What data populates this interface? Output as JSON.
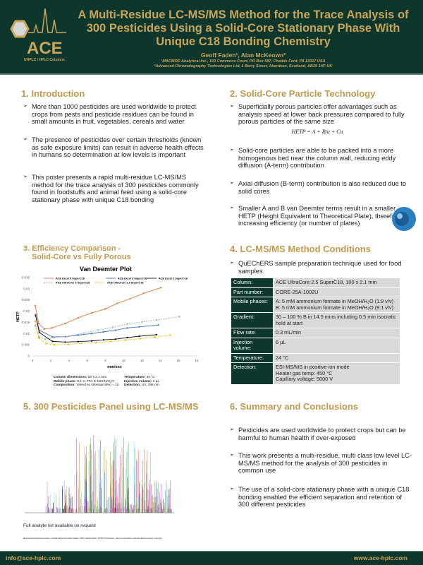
{
  "header": {
    "title": "A Multi-Residue LC-MS/MS Method for the Trace Analysis of 300 Pesticides Using a Solid-Core Stationary Phase With Unique C18 Bonding Chemistry",
    "authors": "Geoff Faden¹, Alan McKeown²",
    "affiliation1": "¹MACMOD Analytical Inc., 103 Commons Court, PO Box 587, Chadds Ford, PA 19317 USA",
    "affiliation2": "²Advanced Chromatography Technologies Ltd, 1 Berry Street, Aberdeen, Scotland, AB25 1HF UK",
    "logo_text": "ACE",
    "logo_sub": "UHPLC / HPLC Columns"
  },
  "colors": {
    "dark_green": "#0d362c",
    "gold": "#c9a55a"
  },
  "intro": {
    "title": "1. Introduction",
    "bullets": [
      "More than 1000 pesticides are used worldwide to protect crops from pests and pesticide residues can be found in small amounts in fruit, vegetables, cereals and water",
      "The presence of pesticides over certain thresholds (known as safe exposure limits) can result in adverse health effects in humans so determination at low levels is important",
      "This poster presents a rapid multi-residue LC-MS/MS method for the trace analysis of 300 pesticides commonly found in foodstuffs and animal feed using a solid-core stationary phase with unique C18 bonding"
    ]
  },
  "solidcore": {
    "title": "2. Solid-Core Particle Technology",
    "bullets": [
      "Superficially porous particles offer advantages such as analysis speed at lower back pressures compared to fully porous particles of the same size",
      "Solid-core particles are able to be packed into a more homogenous bed near the column wall, reducing eddy diffusion (A-term) contribution",
      "Axial diffusion (B-term) contribution is also reduced due to solid cores",
      "Smaller A and B van Deemter terms result in a smaller HETP (Height Equivalent to Theoretical Plate), therefore increasing efficiency (or number of plates)"
    ],
    "equation": "HETP = A + B/u + Cu"
  },
  "efficiency": {
    "title1": "3. Efficiency Comparison -",
    "title2": "Solid-Core vs Fully Porous",
    "caption": [
      [
        "Column dimensions:",
        " 50 x 2.1 mm"
      ],
      [
        "Mobile phase:",
        " 0.1 % TFA in MeCN/H₂O"
      ],
      [
        "Composition:",
        " Varied so k(ketoprofen) = 10"
      ],
      [
        "Temperature:",
        " 40 °C"
      ],
      [
        "Injection volume:",
        " 2 µL"
      ],
      [
        "Detection:",
        " UV, 258 nm"
      ]
    ]
  },
  "chart_data": {
    "type": "line",
    "title": "Van Deemter Plot",
    "xlabel": "mm/sec",
    "ylabel": "HETP",
    "xlim": [
      0,
      18
    ],
    "ylim": [
      0,
      0.035
    ],
    "xticks": [
      0,
      2,
      4,
      6,
      8,
      10,
      12,
      14,
      16,
      18
    ],
    "yticks": [
      0,
      0.005,
      0.01,
      0.015,
      0.02,
      0.025,
      0.03,
      0.035
    ],
    "ytick_labels": [
      "0",
      "0.005",
      "0.01",
      "0.015",
      "0.02",
      "0.025",
      "0.03",
      "0.035"
    ],
    "grid": false,
    "legend": "top",
    "series": [
      {
        "name": "ACE Excel 5 SuperC18",
        "color": "#e07b39",
        "dashed": false,
        "x": [
          0.3,
          0.7,
          1.3,
          2.1,
          3.6,
          5,
          6.5,
          8,
          9.3,
          10.7,
          12.2,
          14.1
        ],
        "y": [
          0.0225,
          0.0145,
          0.012,
          0.0125,
          0.0145,
          0.017,
          0.0192,
          0.021,
          0.0235,
          0.0255,
          0.028,
          0.0305
        ]
      },
      {
        "name": "ACE Excel 3 SuperC18",
        "color": "#4472c4",
        "dashed": false,
        "x": [
          0.35,
          0.75,
          2.2,
          3.6,
          5,
          6.5,
          7.8,
          9.1,
          10.4,
          11.7,
          13.8
        ],
        "y": [
          0.0185,
          0.0115,
          0.0085,
          0.0086,
          0.0093,
          0.01,
          0.0108,
          0.0115,
          0.0125,
          0.013,
          0.0138
        ]
      },
      {
        "name": "ACE Excel 2 SuperC18",
        "color": "#111111",
        "dashed": false,
        "x": [
          0.35,
          0.75,
          2.2,
          3.6,
          5,
          6.5,
          7.8,
          9.1,
          10.4,
          11.7,
          13.6
        ],
        "y": [
          0.018,
          0.0105,
          0.0065,
          0.0062,
          0.0064,
          0.0067,
          0.0072,
          0.0075,
          0.0082,
          0.0088,
          0.0095
        ]
      },
      {
        "name": "ACE UltraCore 5 SuperC18",
        "color": "#a5a5a5",
        "dashed": true,
        "x": [
          0.3,
          0.7,
          1.4,
          2.4,
          4,
          5.6,
          7.2,
          8.8,
          10.4,
          12,
          13.6,
          16.1
        ],
        "y": [
          0.0135,
          0.0085,
          0.0075,
          0.0082,
          0.0088,
          0.0102,
          0.0115,
          0.0128,
          0.0142,
          0.0152,
          0.016,
          0.0175
        ]
      },
      {
        "name": "ACE UltraCore 2.5 SuperC18",
        "color": "#f0b800",
        "dashed": true,
        "x": [
          0.3,
          0.7,
          1.5,
          2.4,
          3.9,
          5.4,
          7,
          8.6,
          10.2,
          11.8,
          13.4,
          15.1
        ],
        "y": [
          0.0155,
          0.008,
          0.0055,
          0.005,
          0.0052,
          0.0056,
          0.006,
          0.0065,
          0.0071,
          0.0077,
          0.0084,
          0.0093
        ]
      }
    ]
  },
  "pesticides": {
    "title": "5. 300 Pesticides Panel using LC-MS/MS",
    "note": "Full analyte list available on request",
    "credit": "Reproduced with permission of National Food Chain Safety Office, Directorate of Plant Protection, Soil Conservation and Agri-Environment, Hungary"
  },
  "method": {
    "title": "4. LC-MS/MS Method Conditions",
    "bullet": "QuEChERS sample preparation technique used for food samples",
    "rows": [
      {
        "k": "Column:",
        "v": [
          "ACE UltraCore 2.5 SuperC18, 100 x 2.1 mm"
        ]
      },
      {
        "k": "Part number:",
        "v": [
          "CORE-25A-1002U"
        ]
      },
      {
        "k": "Mobile phases:",
        "v": [
          "A: 5 mM ammonium formate in MeOH/H₂O (1:9 v/v)",
          "B: 5 mM ammonium formate in MeOH/H₂O (9:1 v/v)"
        ]
      },
      {
        "k": "Gradient:",
        "v": [
          "30 – 100 % B in 14.5 mins including 0.5 min isocratic hold at start"
        ]
      },
      {
        "k": "Flow rate:",
        "v": [
          "0.3 mL/min"
        ]
      },
      {
        "k": "Injection volume:",
        "v": [
          "6 µL"
        ]
      },
      {
        "k": "Temperature:",
        "v": [
          "24 °C"
        ]
      },
      {
        "k": "Detection:",
        "v": [
          "ESI-MS/MS in positive ion mode",
          "Heater gas temp: 450 °C",
          "Capillary voltage: 5000 V"
        ]
      }
    ]
  },
  "summary": {
    "title": "6. Summary and Conclusions",
    "bullets": [
      "Pesticides are used worldwide to protect crops but can be harmful to human health if over-exposed",
      "This work presents a multi-residue, multi class low level LC-MS/MS method for the analysis of 300 pesticides in common use",
      "The use of a solid-core stationary phase with a unique C18 bonding enabled the efficient separation and retention of 300 different pesticides"
    ]
  },
  "footer": {
    "email": "info@ace-hplc.com",
    "website": "www.ace-hplc.com"
  }
}
